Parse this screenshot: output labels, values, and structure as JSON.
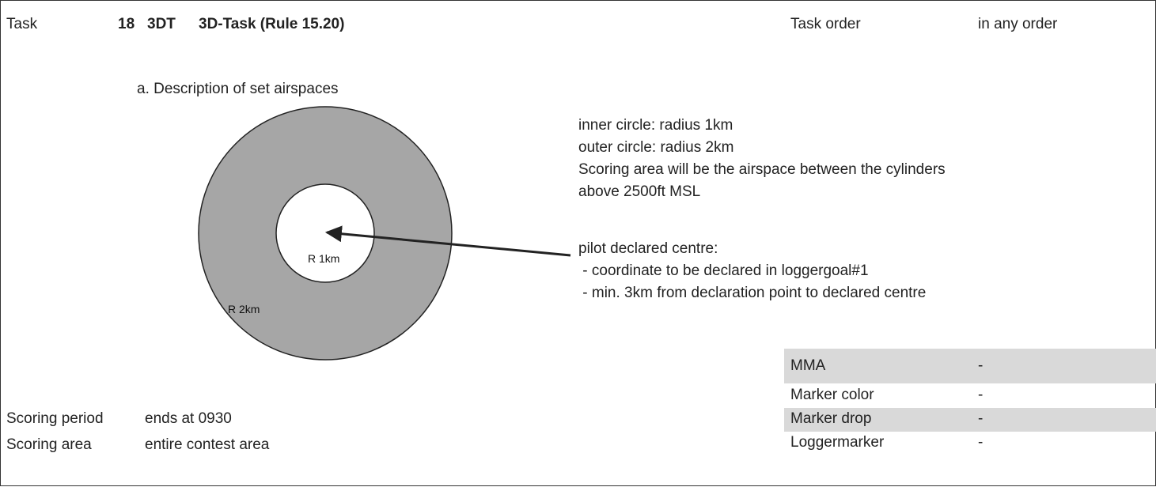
{
  "header": {
    "label": "Task",
    "number": "18",
    "code": "3DT",
    "title": "3D-Task (Rule 15.20)",
    "order_label": "Task order",
    "order_value": "in any order"
  },
  "description": {
    "heading": "a. Description of set airspaces",
    "inner_label": "R 1km",
    "outer_label": "R 2km",
    "notes": [
      "inner circle: radius 1km",
      "outer circle: radius 2km",
      "Scoring area will be the airspace between the cylinders",
      "above 2500ft MSL"
    ],
    "pilot": [
      "pilot declared centre:",
      " - coordinate to be declared in loggergoal#1",
      " - min. 3km from declaration point to declared centre"
    ]
  },
  "details": [
    [
      "MMA",
      "-"
    ],
    [
      "Marker color",
      "-"
    ],
    [
      "Marker drop",
      "-"
    ],
    [
      "Loggermarker",
      "-"
    ]
  ],
  "scoring": [
    [
      "Scoring period",
      "ends at 0930"
    ],
    [
      "Scoring area",
      "entire contest area"
    ]
  ]
}
